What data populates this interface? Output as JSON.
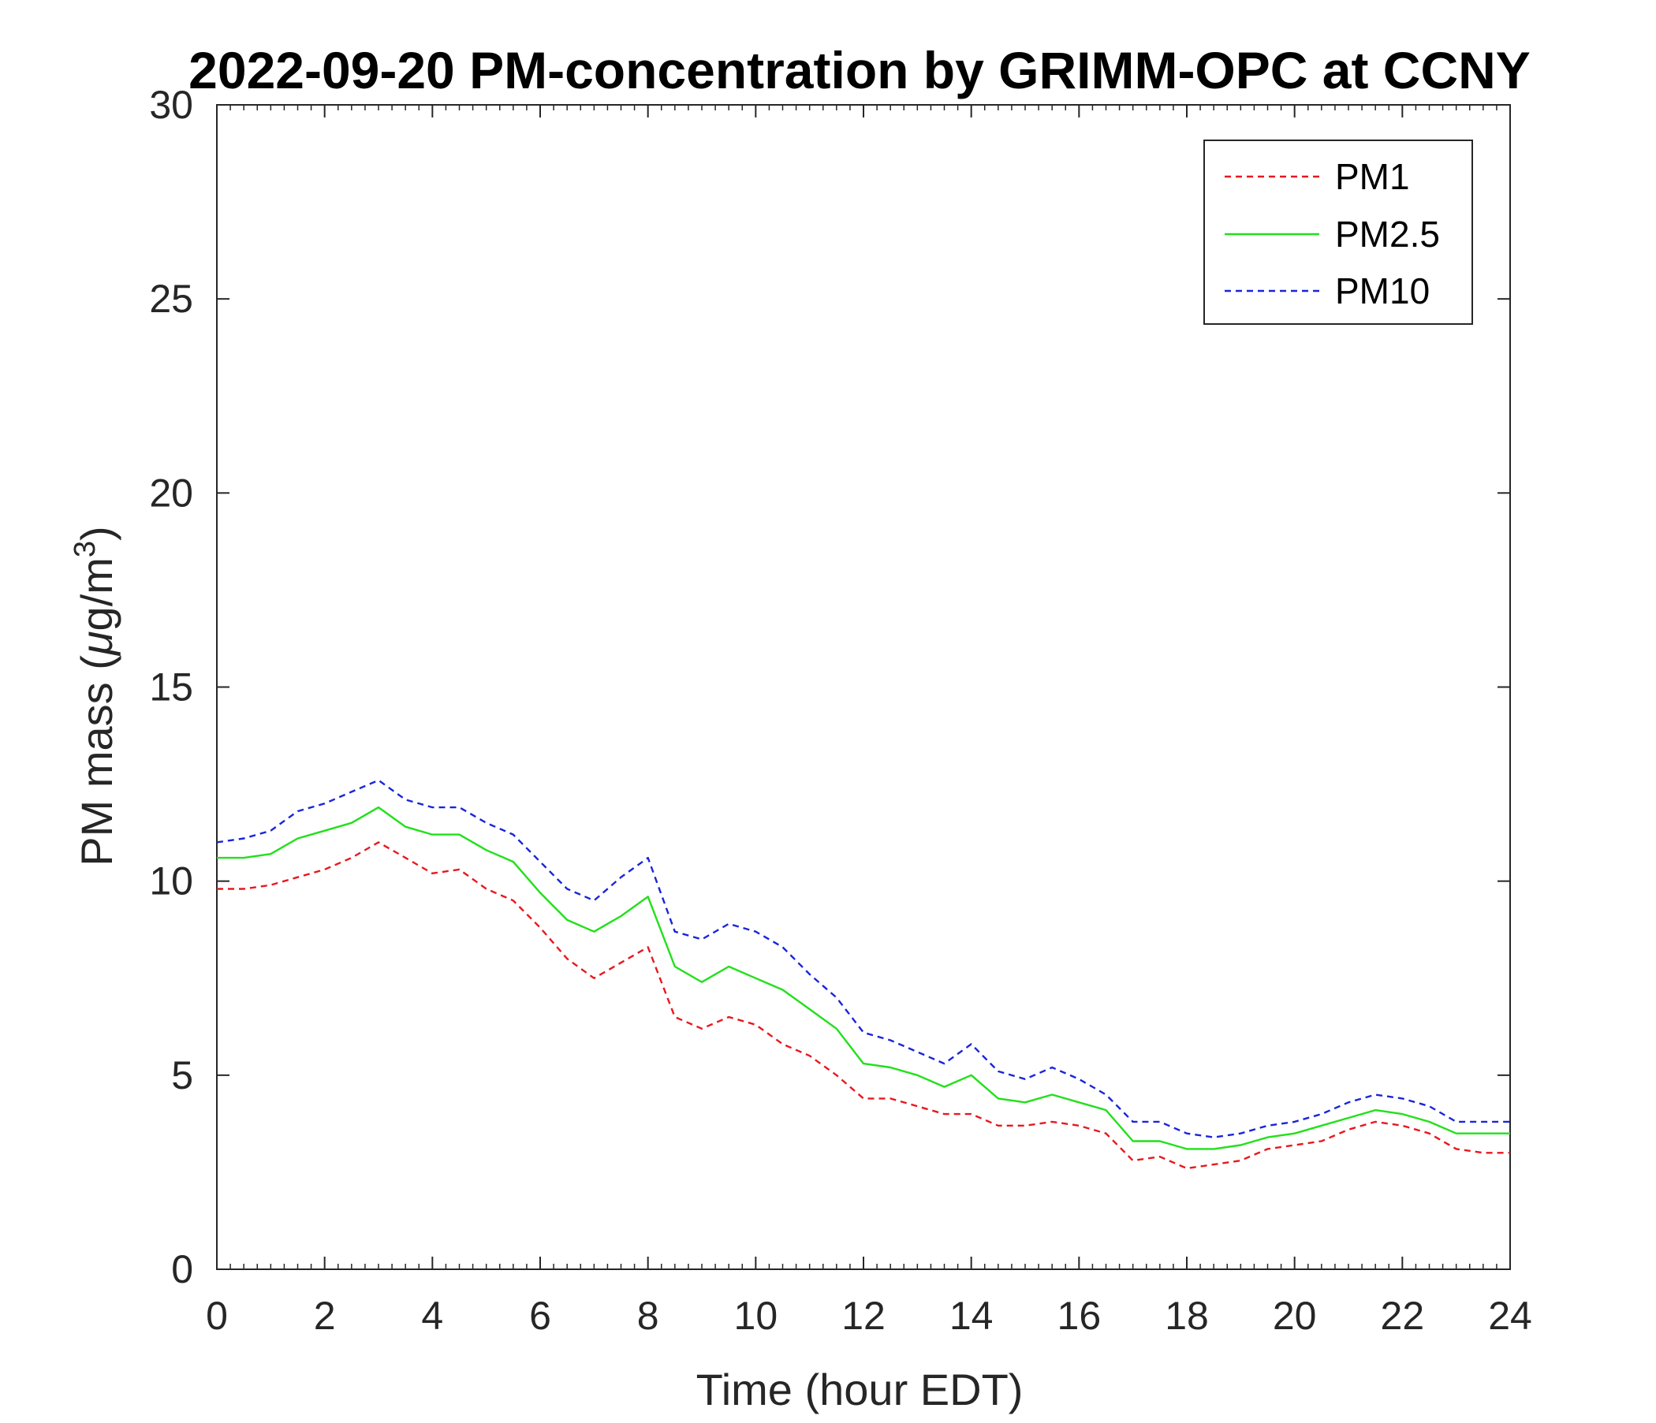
{
  "chart_data": {
    "type": "line",
    "title": "2022-09-20 PM-concentration by GRIMM-OPC at CCNY",
    "xlabel": "Time (hour EDT)",
    "ylabel_prefix": "PM mass (",
    "ylabel_mu": "μ",
    "ylabel_mid": "g/m",
    "ylabel_sup": "3",
    "ylabel_suffix": ")",
    "xlim": [
      0,
      24
    ],
    "ylim": [
      0,
      30
    ],
    "xticks": [
      0,
      2,
      4,
      6,
      8,
      10,
      12,
      14,
      16,
      18,
      20,
      22,
      24
    ],
    "xtick_labels": [
      "0",
      "2",
      "4",
      "6",
      "8",
      "10",
      "12",
      "14",
      "16",
      "18",
      "20",
      "22",
      "24"
    ],
    "yticks": [
      0,
      5,
      10,
      15,
      20,
      25,
      30
    ],
    "ytick_labels": [
      "0",
      "5",
      "10",
      "15",
      "20",
      "25",
      "30"
    ],
    "grid": false,
    "legend_position": "top-right",
    "x": [
      0,
      0.5,
      1,
      1.5,
      2,
      2.5,
      3,
      3.5,
      4,
      4.5,
      5,
      5.5,
      6,
      6.5,
      7,
      7.5,
      8,
      8.5,
      9,
      9.5,
      10,
      10.5,
      11,
      11.5,
      12,
      12.5,
      13,
      13.5,
      14,
      14.5,
      15,
      15.5,
      16,
      16.5,
      17,
      17.5,
      18,
      18.5,
      19,
      19.5,
      20,
      20.5,
      21,
      21.5,
      22,
      22.5,
      23,
      23.5,
      24
    ],
    "series": [
      {
        "name": "PM1",
        "color": "#e8181f",
        "style": "dashed",
        "values": [
          9.8,
          9.8,
          9.9,
          10.1,
          10.3,
          10.6,
          11.0,
          10.6,
          10.2,
          10.3,
          9.8,
          9.5,
          8.8,
          8.0,
          7.5,
          7.9,
          8.3,
          6.5,
          6.2,
          6.5,
          6.3,
          5.8,
          5.5,
          5.0,
          4.4,
          4.4,
          4.2,
          4.0,
          4.0,
          3.7,
          3.7,
          3.8,
          3.7,
          3.5,
          2.8,
          2.9,
          2.6,
          2.7,
          2.8,
          3.1,
          3.2,
          3.3,
          3.6,
          3.8,
          3.7,
          3.5,
          3.1,
          3.0,
          3.0
        ]
      },
      {
        "name": "PM2.5",
        "color": "#22e01a",
        "style": "solid",
        "values": [
          10.6,
          10.6,
          10.7,
          11.1,
          11.3,
          11.5,
          11.9,
          11.4,
          11.2,
          11.2,
          10.8,
          10.5,
          9.7,
          9.0,
          8.7,
          9.1,
          9.6,
          7.8,
          7.4,
          7.8,
          7.5,
          7.2,
          6.7,
          6.2,
          5.3,
          5.2,
          5.0,
          4.7,
          5.0,
          4.4,
          4.3,
          4.5,
          4.3,
          4.1,
          3.3,
          3.3,
          3.1,
          3.1,
          3.2,
          3.4,
          3.5,
          3.7,
          3.9,
          4.1,
          4.0,
          3.8,
          3.5,
          3.5,
          3.5
        ]
      },
      {
        "name": "PM10",
        "color": "#1a25d9",
        "style": "dashed",
        "values": [
          11.0,
          11.1,
          11.3,
          11.8,
          12.0,
          12.3,
          12.6,
          12.1,
          11.9,
          11.9,
          11.5,
          11.2,
          10.5,
          9.8,
          9.5,
          10.1,
          10.6,
          8.7,
          8.5,
          8.9,
          8.7,
          8.3,
          7.6,
          7.0,
          6.1,
          5.9,
          5.6,
          5.3,
          5.8,
          5.1,
          4.9,
          5.2,
          4.9,
          4.5,
          3.8,
          3.8,
          3.5,
          3.4,
          3.5,
          3.7,
          3.8,
          4.0,
          4.3,
          4.5,
          4.4,
          4.2,
          3.8,
          3.8,
          3.8
        ]
      }
    ]
  }
}
